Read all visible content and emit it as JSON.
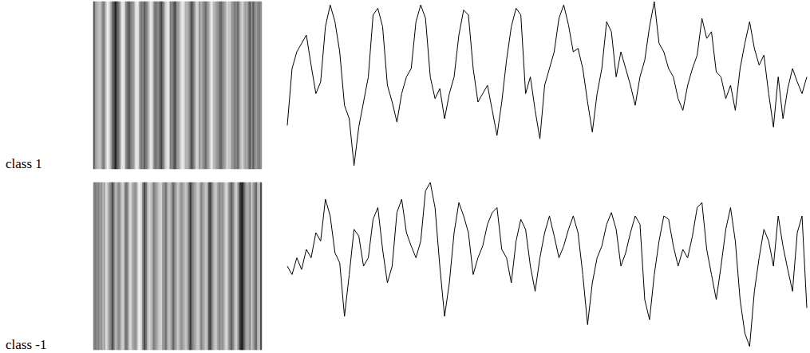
{
  "chart_data": [
    {
      "type": "line",
      "title": "class 1",
      "color": "#000000",
      "ylim": [
        0,
        100
      ],
      "tick_labels": false,
      "grid": false,
      "values": [
        26,
        60,
        70,
        75,
        80,
        62,
        45,
        52,
        85,
        98,
        88,
        70,
        38,
        30,
        2,
        25,
        40,
        55,
        92,
        96,
        85,
        50,
        40,
        28,
        45,
        55,
        60,
        88,
        98,
        90,
        55,
        42,
        48,
        30,
        45,
        55,
        80,
        95,
        92,
        60,
        40,
        45,
        50,
        35,
        20,
        40,
        65,
        85,
        96,
        92,
        45,
        55,
        35,
        18,
        50,
        60,
        70,
        90,
        98,
        86,
        70,
        72,
        60,
        40,
        22,
        45,
        60,
        88,
        82,
        55,
        70,
        60,
        50,
        38,
        55,
        65,
        85,
        100,
        75,
        70,
        60,
        55,
        42,
        35,
        50,
        60,
        68,
        90,
        78,
        82,
        58,
        55,
        42,
        50,
        35,
        60,
        75,
        88,
        72,
        62,
        68,
        45,
        25,
        55,
        30,
        48,
        60,
        52,
        45,
        55
      ]
    },
    {
      "type": "line",
      "title": "class -1",
      "color": "#000000",
      "ylim": [
        0,
        100
      ],
      "tick_labels": false,
      "grid": false,
      "values": [
        50,
        45,
        55,
        48,
        60,
        55,
        70,
        65,
        90,
        80,
        58,
        52,
        20,
        45,
        72,
        68,
        50,
        55,
        78,
        85,
        60,
        40,
        50,
        82,
        90,
        70,
        62,
        55,
        65,
        95,
        100,
        85,
        50,
        20,
        40,
        70,
        88,
        80,
        70,
        45,
        55,
        62,
        75,
        82,
        85,
        60,
        55,
        40,
        65,
        78,
        72,
        50,
        35,
        55,
        70,
        80,
        68,
        55,
        62,
        72,
        80,
        70,
        45,
        15,
        40,
        55,
        62,
        75,
        82,
        72,
        50,
        58,
        70,
        80,
        75,
        30,
        18,
        45,
        65,
        80,
        78,
        62,
        50,
        60,
        55,
        68,
        85,
        88,
        60,
        45,
        30,
        50,
        72,
        85,
        65,
        30,
        10,
        2,
        35,
        55,
        72,
        65,
        50,
        80,
        62,
        48,
        35,
        70,
        80,
        25
      ]
    }
  ]
}
